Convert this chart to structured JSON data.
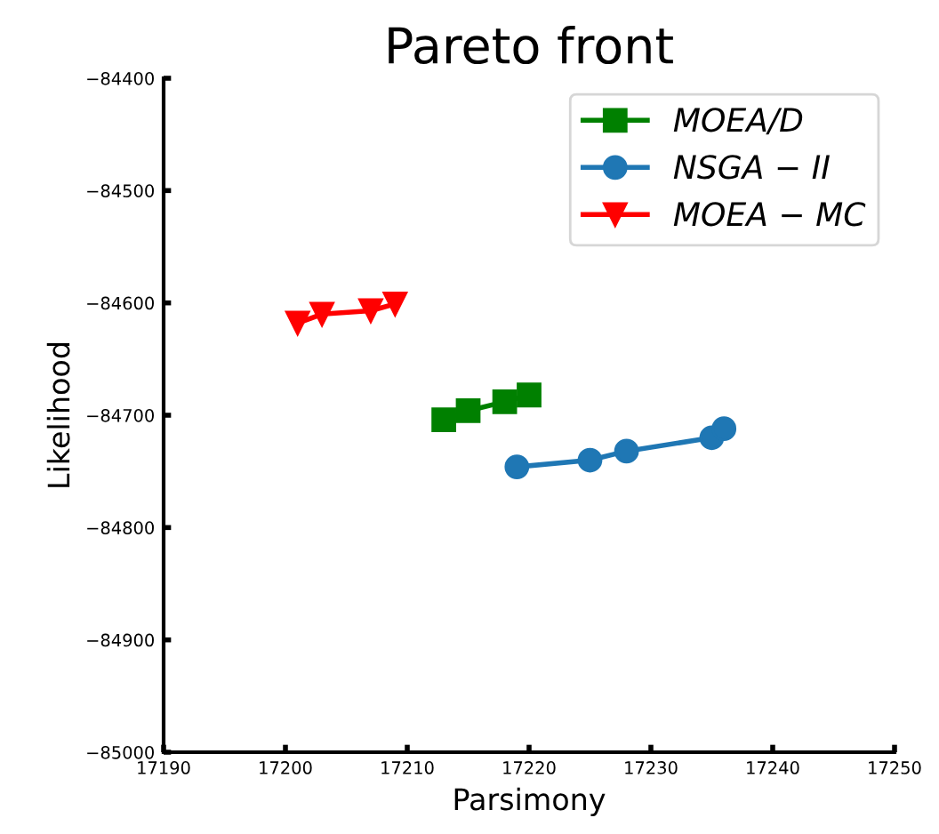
{
  "chart_data": {
    "type": "line",
    "title": "Pareto front",
    "xlabel": "Parsimony",
    "ylabel": "Likelihood",
    "xlim": [
      17190,
      17250
    ],
    "xticks": [
      17190,
      17200,
      17210,
      17220,
      17230,
      17240,
      17250
    ],
    "ylim": [
      -85000,
      -84400
    ],
    "yticks": [
      {
        "value": -85000,
        "label": "−85000"
      },
      {
        "value": -84900,
        "label": "−84900"
      },
      {
        "value": -84800,
        "label": "−84800"
      },
      {
        "value": -84700,
        "label": "−84700"
      },
      {
        "value": -84600,
        "label": "−84600"
      },
      {
        "value": -84500,
        "label": "−84500"
      },
      {
        "value": -84400,
        "label": "−84400"
      }
    ],
    "grid": false,
    "legend": "top right",
    "series": [
      {
        "name": "MOEA/D",
        "color": "#008000",
        "marker": "square",
        "x": [
          17213,
          17215,
          17218,
          17220
        ],
        "values": [
          -84704,
          -84696,
          -84688,
          -84682
        ]
      },
      {
        "name": "NSGA − II",
        "color": "#1f77b4",
        "marker": "circle",
        "x": [
          17219,
          17225,
          17228,
          17235,
          17236
        ],
        "values": [
          -84746,
          -84740,
          -84732,
          -84720,
          -84712
        ]
      },
      {
        "name": "MOEA − MC",
        "color": "#ff0000",
        "marker": "triangle",
        "x": [
          17201,
          17203,
          17207,
          17209
        ],
        "values": [
          -84618,
          -84610,
          -84607,
          -84601
        ]
      }
    ]
  }
}
